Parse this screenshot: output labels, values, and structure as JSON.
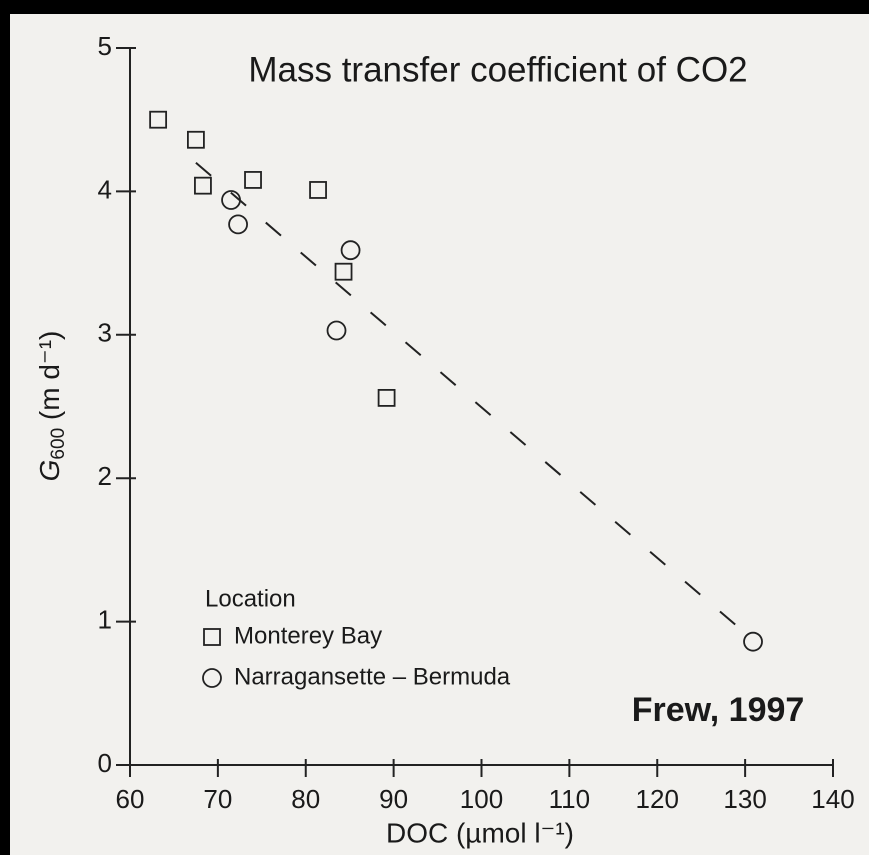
{
  "chart_data": {
    "type": "scatter",
    "title": "Mass transfer coefficient of CO2",
    "annotation": "Frew, 1997",
    "x_label": "DOC (µmol l⁻¹)",
    "y_label": {
      "main": "G",
      "sub": "600",
      "rest": " (m d⁻¹)"
    },
    "legend_title": "Location",
    "xlim": [
      60,
      140
    ],
    "xticks": [
      60,
      70,
      80,
      90,
      100,
      110,
      120,
      130,
      140
    ],
    "ylim": [
      0,
      5
    ],
    "yticks": [
      0,
      1,
      2,
      3,
      4,
      5
    ],
    "series": [
      {
        "name": "Monterey Bay",
        "marker": "square",
        "color": "#222222",
        "x": [
          63.2,
          67.5,
          68.3,
          74.0,
          81.4,
          84.3,
          89.2
        ],
        "values": [
          4.5,
          4.36,
          4.04,
          4.08,
          4.01,
          3.44,
          2.56
        ]
      },
      {
        "name": "Narragansette – Bermuda",
        "marker": "circle",
        "color": "#222222",
        "x": [
          71.5,
          72.3,
          85.1,
          83.5,
          130.9
        ],
        "values": [
          3.94,
          3.77,
          3.59,
          3.03,
          0.86
        ]
      }
    ],
    "trend": {
      "x": [
        67.5,
        130
      ],
      "values": [
        4.2,
        0.92
      ],
      "color": "#222222"
    }
  }
}
